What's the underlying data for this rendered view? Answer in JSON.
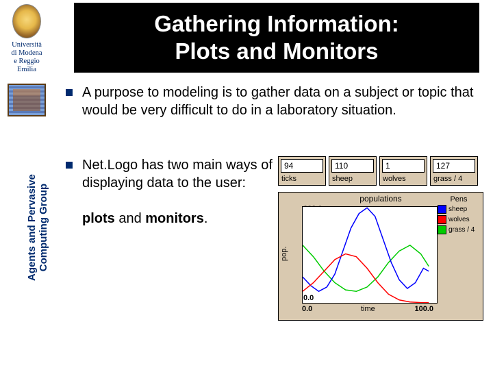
{
  "sidebar": {
    "uni_line1": "Università",
    "uni_line2": "di Modena",
    "uni_line3": "e Reggio",
    "uni_line4": "Emilia",
    "vertical_line1": "Agents and Pervasive",
    "vertical_line2": "Computing Group"
  },
  "title": {
    "line1": "Gathering Information:",
    "line2": "Plots and Monitors"
  },
  "bullet1": "A purpose to modeling is to gather data on a subject or topic that would be very difficult to do in a laboratory situation.",
  "bullet2": {
    "part1": "Net.Logo has two main ways of displaying data to the user:",
    "plots_word": "plots",
    "and_word": " and ",
    "monitors_word": "monitors",
    "period": "."
  },
  "monitors": [
    {
      "value": "94",
      "label": "ticks"
    },
    {
      "value": "110",
      "label": "sheep"
    },
    {
      "value": "1",
      "label": "wolves"
    },
    {
      "value": "127",
      "label": "grass / 4"
    }
  ],
  "plot": {
    "title": "populations",
    "ylabel": "pop.",
    "xlabel": "time",
    "ymax": "333.0",
    "ymin": "0.0",
    "xmin": "0.0",
    "xmax": "100.0",
    "xlim": [
      0,
      100
    ],
    "ylim": [
      0,
      333
    ],
    "background_color": "#ffffff",
    "panel_color": "#d9c9b0",
    "border_color": "#000000",
    "legend_title": "Pens",
    "pens": [
      {
        "label": "sheep",
        "color": "#0000ff"
      },
      {
        "label": "wolves",
        "color": "#ff0000"
      },
      {
        "label": "grass / 4",
        "color": "#00cc00"
      }
    ],
    "series": {
      "sheep": [
        [
          0,
          90
        ],
        [
          6,
          60
        ],
        [
          12,
          40
        ],
        [
          18,
          55
        ],
        [
          24,
          100
        ],
        [
          30,
          180
        ],
        [
          36,
          260
        ],
        [
          42,
          310
        ],
        [
          48,
          330
        ],
        [
          54,
          300
        ],
        [
          60,
          220
        ],
        [
          66,
          140
        ],
        [
          72,
          80
        ],
        [
          78,
          50
        ],
        [
          84,
          70
        ],
        [
          90,
          120
        ],
        [
          94,
          110
        ]
      ],
      "wolves": [
        [
          0,
          40
        ],
        [
          8,
          70
        ],
        [
          16,
          110
        ],
        [
          24,
          150
        ],
        [
          32,
          170
        ],
        [
          40,
          160
        ],
        [
          48,
          120
        ],
        [
          56,
          70
        ],
        [
          64,
          30
        ],
        [
          72,
          10
        ],
        [
          80,
          3
        ],
        [
          88,
          1
        ],
        [
          94,
          1
        ]
      ],
      "grass": [
        [
          0,
          200
        ],
        [
          8,
          160
        ],
        [
          16,
          110
        ],
        [
          24,
          70
        ],
        [
          32,
          45
        ],
        [
          40,
          40
        ],
        [
          48,
          55
        ],
        [
          56,
          90
        ],
        [
          64,
          140
        ],
        [
          72,
          180
        ],
        [
          80,
          200
        ],
        [
          88,
          170
        ],
        [
          94,
          127
        ]
      ]
    },
    "line_width": 1.5,
    "label_fontsize": 11
  },
  "colors": {
    "accent_navy": "#002a6e",
    "title_band_bg": "#000000",
    "title_text": "#ffffff",
    "panel_tan": "#d9c9b0"
  }
}
